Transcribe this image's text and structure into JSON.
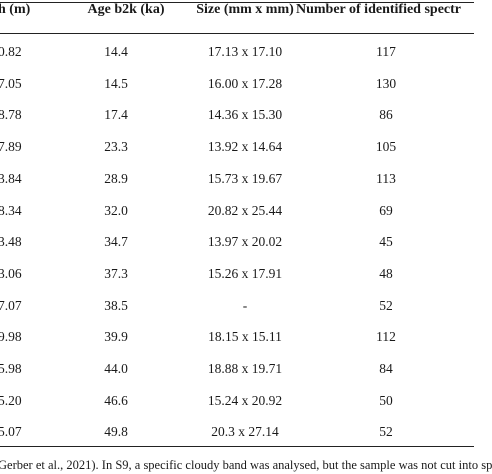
{
  "table": {
    "headers": [
      "h (m)",
      "Age b2k (ka)",
      "Size (mm x mm)",
      "Number of identified spectr"
    ],
    "rows": [
      [
        "0.82",
        "14.4",
        "17.13 x 17.10",
        "117"
      ],
      [
        "7.05",
        "14.5",
        "16.00 x 17.28",
        "130"
      ],
      [
        "8.78",
        "17.4",
        "14.36 x 15.30",
        "86"
      ],
      [
        "7.89",
        "23.3",
        "13.92 x 14.64",
        "105"
      ],
      [
        "3.84",
        "28.9",
        "15.73 x 19.67",
        "113"
      ],
      [
        "8.34",
        "32.0",
        "20.82 x 25.44",
        "69"
      ],
      [
        "3.48",
        "34.7",
        "13.97 x 20.02",
        "45"
      ],
      [
        "3.06",
        "37.3",
        "15.26 x 17.91",
        "48"
      ],
      [
        "7.07",
        "38.5",
        "-",
        "52"
      ],
      [
        "9.98",
        "39.9",
        "18.15 x 15.11",
        "112"
      ],
      [
        "5.98",
        "44.0",
        "18.88 x 19.71",
        "84"
      ],
      [
        "5.20",
        "46.6",
        "15.24 x 20.92",
        "50"
      ],
      [
        "5.07",
        "49.8",
        "20.3 x 27.14",
        "52"
      ]
    ]
  },
  "footnote": "Gerber et al., 2021). In S9, a specific cloudy band was analysed, but the sample was not cut into sp"
}
